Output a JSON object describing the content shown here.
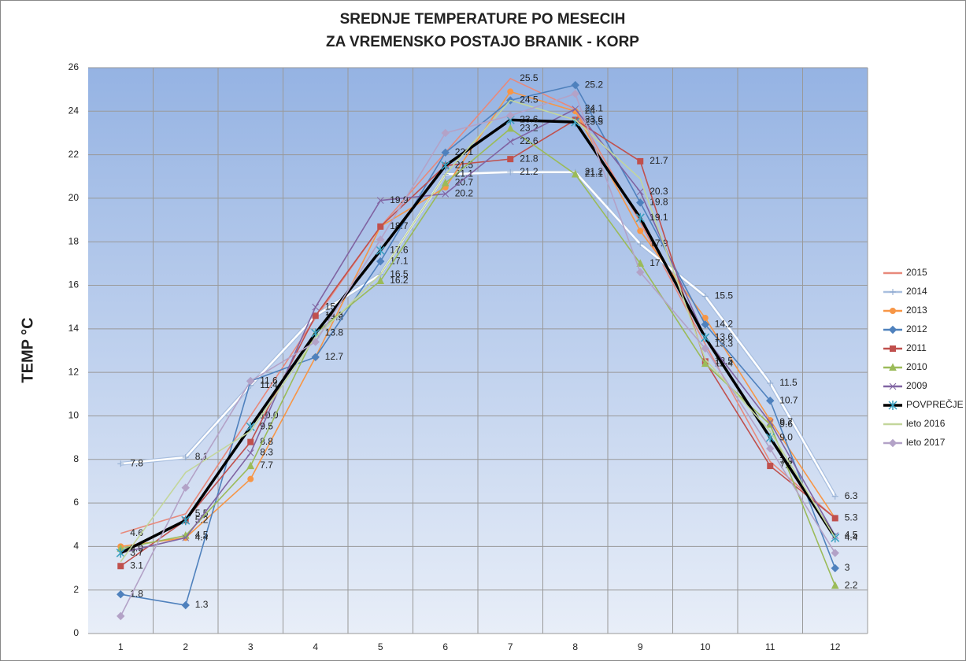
{
  "chart_data": {
    "type": "line",
    "title": "SREDNJE  TEMPERATURE PO MESECIH",
    "subtitle": "ZA VREMENSKO POSTAJO BRANIK - KORP",
    "y_label": "TEMP °C",
    "categories": [
      1,
      2,
      3,
      4,
      5,
      6,
      7,
      8,
      9,
      10,
      11,
      12
    ],
    "ylim": [
      0,
      26
    ],
    "yticks": [
      0,
      2,
      4,
      6,
      8,
      10,
      12,
      14,
      16,
      18,
      20,
      22,
      24,
      26
    ],
    "grid": true,
    "legend": "right",
    "series": [
      {
        "name": "2015",
        "color": "#e8897b",
        "marker": "none",
        "values": [
          4.6,
          5.5,
          10.0,
          14.5,
          18.7,
          22.1,
          25.5,
          24.1,
          18.9,
          13.3,
          7.9,
          5.3
        ],
        "value_labels": [
          "4.6",
          "5.5",
          "10.0",
          "14.5",
          "18.7",
          null,
          "25.5",
          null,
          null,
          "13.3",
          "7.9",
          null
        ]
      },
      {
        "name": "2014",
        "color": "#ffffff",
        "marker": "plus",
        "values": [
          7.8,
          8.1,
          11.4,
          14.6,
          16.5,
          21.1,
          21.2,
          21.2,
          17.9,
          15.5,
          11.5,
          6.3
        ],
        "value_labels": [
          "7.8",
          "8.1",
          "11.4",
          "14.6",
          "16.5",
          "21.1",
          "21.2",
          "21.2",
          "17.9",
          "15.5",
          "11.5",
          "6.3"
        ]
      },
      {
        "name": "2013",
        "color": "#f79646",
        "marker": "circle",
        "values": [
          4.0,
          4.4,
          7.1,
          12.7,
          18.7,
          20.5,
          24.9,
          24,
          18.5,
          14.5,
          9.8,
          5.3
        ],
        "value_labels": [
          null,
          "4.4",
          null,
          null,
          null,
          null,
          null,
          "24",
          null,
          null,
          null,
          "5.3"
        ]
      },
      {
        "name": "2012",
        "color": "#4f81bd",
        "marker": "diamond",
        "values": [
          1.8,
          1.3,
          11.6,
          12.7,
          17.1,
          22.1,
          24.5,
          25.2,
          19.8,
          14.2,
          10.7,
          3
        ],
        "value_labels": [
          "1.8",
          "1.3",
          "11.6",
          "12.7",
          "17.1",
          "22.1",
          "24.5",
          "25.2",
          "19.8",
          "14.2",
          "10.7",
          "3"
        ]
      },
      {
        "name": "2011",
        "color": "#c0504d",
        "marker": "square",
        "values": [
          3.1,
          5.2,
          8.8,
          14.6,
          18.7,
          21.5,
          21.8,
          23.6,
          21.7,
          12.5,
          7.7,
          5.3
        ],
        "value_labels": [
          "3.1",
          "5.2",
          "8.8",
          null,
          null,
          "21.5",
          "21.8",
          "23.6",
          "21.7",
          "12.5",
          "7.7",
          null
        ]
      },
      {
        "name": "2010",
        "color": "#9bbb59",
        "marker": "triangle",
        "values": [
          3.9,
          4.5,
          7.7,
          13.8,
          16.2,
          20.7,
          23.2,
          21.1,
          17,
          12.4,
          9.6,
          2.2
        ],
        "value_labels": [
          "3.9",
          "4.5",
          "7.7",
          "13.8",
          "16.2",
          "20.7",
          "23.2",
          "21.1",
          "17",
          "12.4",
          "9.6",
          "2.2"
        ]
      },
      {
        "name": "2009",
        "color": "#8064a2",
        "marker": "x",
        "values": [
          3.7,
          4.4,
          8.3,
          15,
          19.9,
          20.2,
          22.6,
          24.1,
          20.3,
          13.6,
          9.7,
          4.5
        ],
        "value_labels": [
          null,
          null,
          "8.3",
          "15",
          "19.9",
          "20.2",
          "22.6",
          "24.1",
          "20.3",
          "13.6",
          "9.7",
          "4.5"
        ]
      },
      {
        "name": "POVPREČJE",
        "color": "#000000",
        "marker": "star",
        "values": [
          3.7,
          5.2,
          9.5,
          13.8,
          17.6,
          21.5,
          23.6,
          23.5,
          19.1,
          13.6,
          9.0,
          4.4
        ],
        "value_labels": [
          "3.7",
          null,
          "9.5",
          null,
          "17.6",
          null,
          "23.6",
          "23.5",
          "19.1",
          null,
          "9.0",
          "4.4"
        ]
      },
      {
        "name": "leto 2016",
        "color": "#c3d69b",
        "marker": "none",
        "values": [
          3.3,
          7.4,
          9.3,
          13.6,
          16.5,
          21.1,
          24.5,
          23.6,
          20.9,
          12.6,
          9.3,
          4.4
        ]
      },
      {
        "name": "leto 2017",
        "color": "#b3a2c7",
        "marker": "diamond",
        "values": [
          0.8,
          6.7,
          11.6,
          13.4,
          18.1,
          23.0,
          23.8,
          24.8,
          16.6,
          13.1,
          8.5,
          3.7
        ]
      }
    ]
  }
}
